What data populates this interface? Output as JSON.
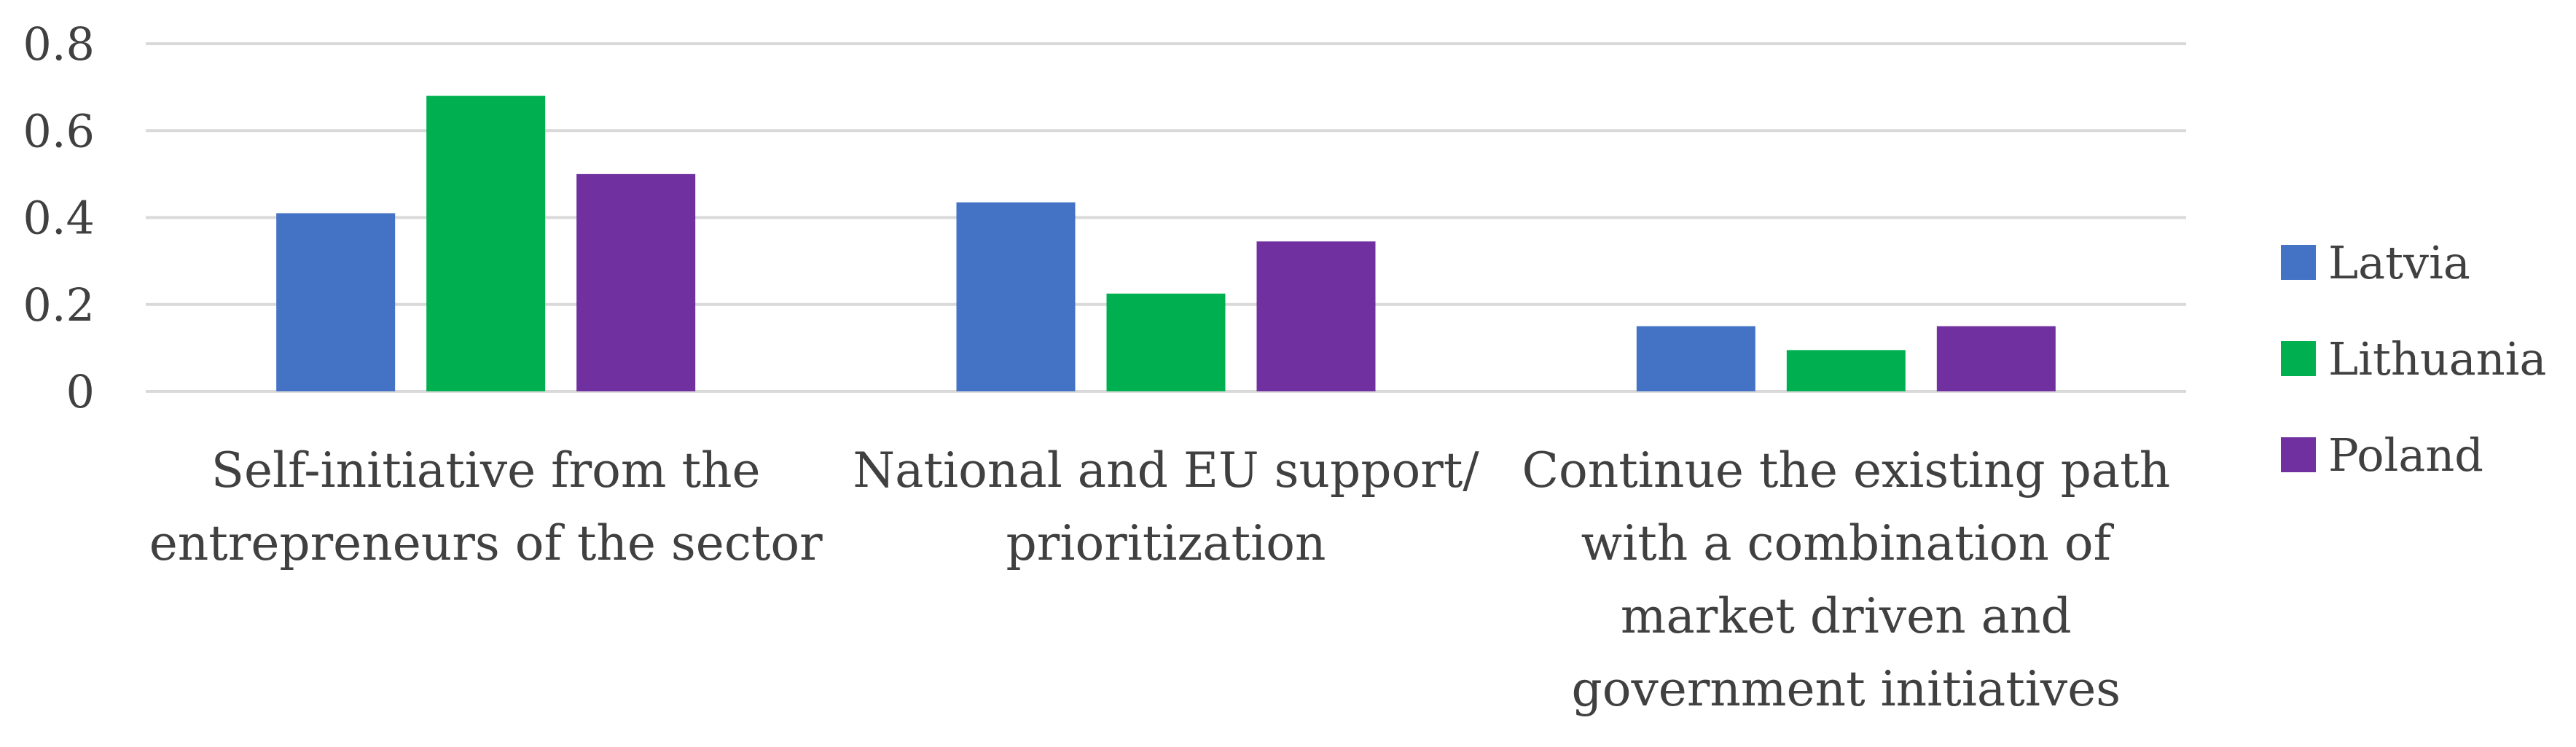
{
  "chart_data": {
    "type": "bar",
    "title": "",
    "xlabel": "",
    "ylabel": "",
    "categories": [
      "Self-initiative from the entrepreneurs of the sector",
      "National and EU support/ prioritization",
      "Continue the existing path with a combination of market driven and government initiatives"
    ],
    "category_lines": [
      [
        "Self-initiative from the",
        "entrepreneurs of the sector"
      ],
      [
        "National and EU support/",
        "prioritization"
      ],
      [
        "Continue the existing path",
        "with a combination of",
        "market driven and",
        "government initiatives"
      ]
    ],
    "series": [
      {
        "name": "Latvia",
        "color": "#4472C4",
        "values": [
          0.41,
          0.435,
          0.15
        ]
      },
      {
        "name": "Lithuania",
        "color": "#00B050",
        "values": [
          0.68,
          0.225,
          0.095
        ]
      },
      {
        "name": "Poland",
        "color": "#7030A0",
        "values": [
          0.5,
          0.345,
          0.15
        ]
      }
    ],
    "ylim": [
      0,
      0.8
    ],
    "yticks": [
      "0",
      "0.2",
      "0.4",
      "0.6",
      "0.8"
    ],
    "grid": true,
    "legend": "right",
    "gridColor": "#D9D9D9"
  }
}
